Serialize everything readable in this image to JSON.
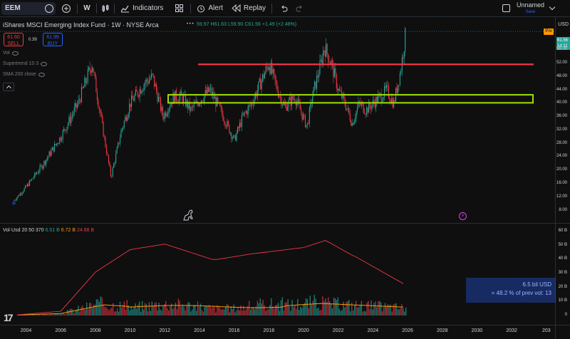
{
  "toolbar": {
    "symbol": "EEM",
    "interval": "W",
    "indicators_label": "Indicators",
    "alert_label": "Alert",
    "replay_label": "Replay",
    "layout_name": "Unnamed",
    "layout_status": "Save"
  },
  "legend": {
    "title": "iShares MSCI Emerging Index Fund · 1W · NYSE Arca",
    "ohlc": "59.97 H61.63 L59.90 C61.56 +1.49 (+2.48%)",
    "sell_price": "61.60",
    "sell_label": "SELL",
    "spread": "0.39",
    "buy_price": "61.99",
    "buy_label": "BUY",
    "indicators": [
      {
        "label": "Vol"
      },
      {
        "label": "Supertrend 10 3"
      },
      {
        "label": "SMA 200 close"
      }
    ]
  },
  "price_axis": {
    "currency": "USD",
    "pre_badge": "Pre",
    "last_price": "61.56",
    "last_countdown": "1d 11",
    "ticks": [
      "56.00",
      "52.00",
      "48.00",
      "44.00",
      "40.00",
      "36.00",
      "32.00",
      "28.00",
      "24.00",
      "20.00",
      "16.00",
      "12.00",
      "8.00"
    ]
  },
  "volume": {
    "legend_name": "Vol·Usd 20 50 370",
    "v1": "6.51 B",
    "v2": "6.72 B",
    "v3": "24.88 B",
    "ticks": [
      "60 B",
      "50 B",
      "40 B",
      "30 B",
      "20 B",
      "10 B",
      "0"
    ],
    "tooltip_line1": "6.5 bil USD",
    "tooltip_line2": "= 48.2 % of prev vol: 13"
  },
  "time_axis": {
    "ticks": [
      "2004",
      "2006",
      "2008",
      "2010",
      "2012",
      "2014",
      "2016",
      "2018",
      "2020",
      "2022",
      "2024",
      "2026",
      "2028",
      "2030",
      "2032",
      "203"
    ]
  },
  "colors": {
    "resistance_line": "#f23645",
    "support_box": "#a0e000",
    "up": "#26a69a",
    "down": "#f23645",
    "sma": "#f23645",
    "vol_ma": "#ff9800"
  },
  "chart_data": {
    "type": "line",
    "x": [
      2003.3,
      2004,
      2005,
      2006,
      2007,
      2007.8,
      2008.5,
      2008.9,
      2009.5,
      2010,
      2010.8,
      2011.3,
      2011.9,
      2012.5,
      2013,
      2013.5,
      2014,
      2014.6,
      2015.2,
      2016.0,
      2016.5,
      2017,
      2017.5,
      2018.0,
      2018.5,
      2018.9,
      2019.5,
      2020.2,
      2020.5,
      2021.0,
      2021.2,
      2021.6,
      2022,
      2022.4,
      2022.8,
      2023.2,
      2023.6,
      2024,
      2024.4,
      2024.8,
      2025.2,
      2025.6,
      2025.9
    ],
    "close": [
      11.0,
      15.0,
      22.0,
      30.0,
      40.0,
      52.0,
      30.0,
      18.0,
      32.0,
      40.0,
      46.0,
      48.0,
      36.0,
      42.0,
      42.0,
      38.0,
      41.0,
      44.0,
      38.0,
      29.0,
      36.0,
      40.0,
      46.0,
      52.0,
      44.0,
      39.0,
      42.0,
      33.0,
      42.0,
      52.0,
      57.0,
      52.0,
      44.0,
      40.0,
      34.0,
      40.0,
      38.0,
      40.0,
      42.0,
      44.0,
      40.0,
      50.0,
      61.56
    ],
    "annotations": {
      "resistance": 51.7,
      "support_range": [
        40.2,
        42.6
      ]
    },
    "ylim": [
      6,
      62
    ],
    "xlim": [
      2002.5,
      2034.5
    ]
  }
}
